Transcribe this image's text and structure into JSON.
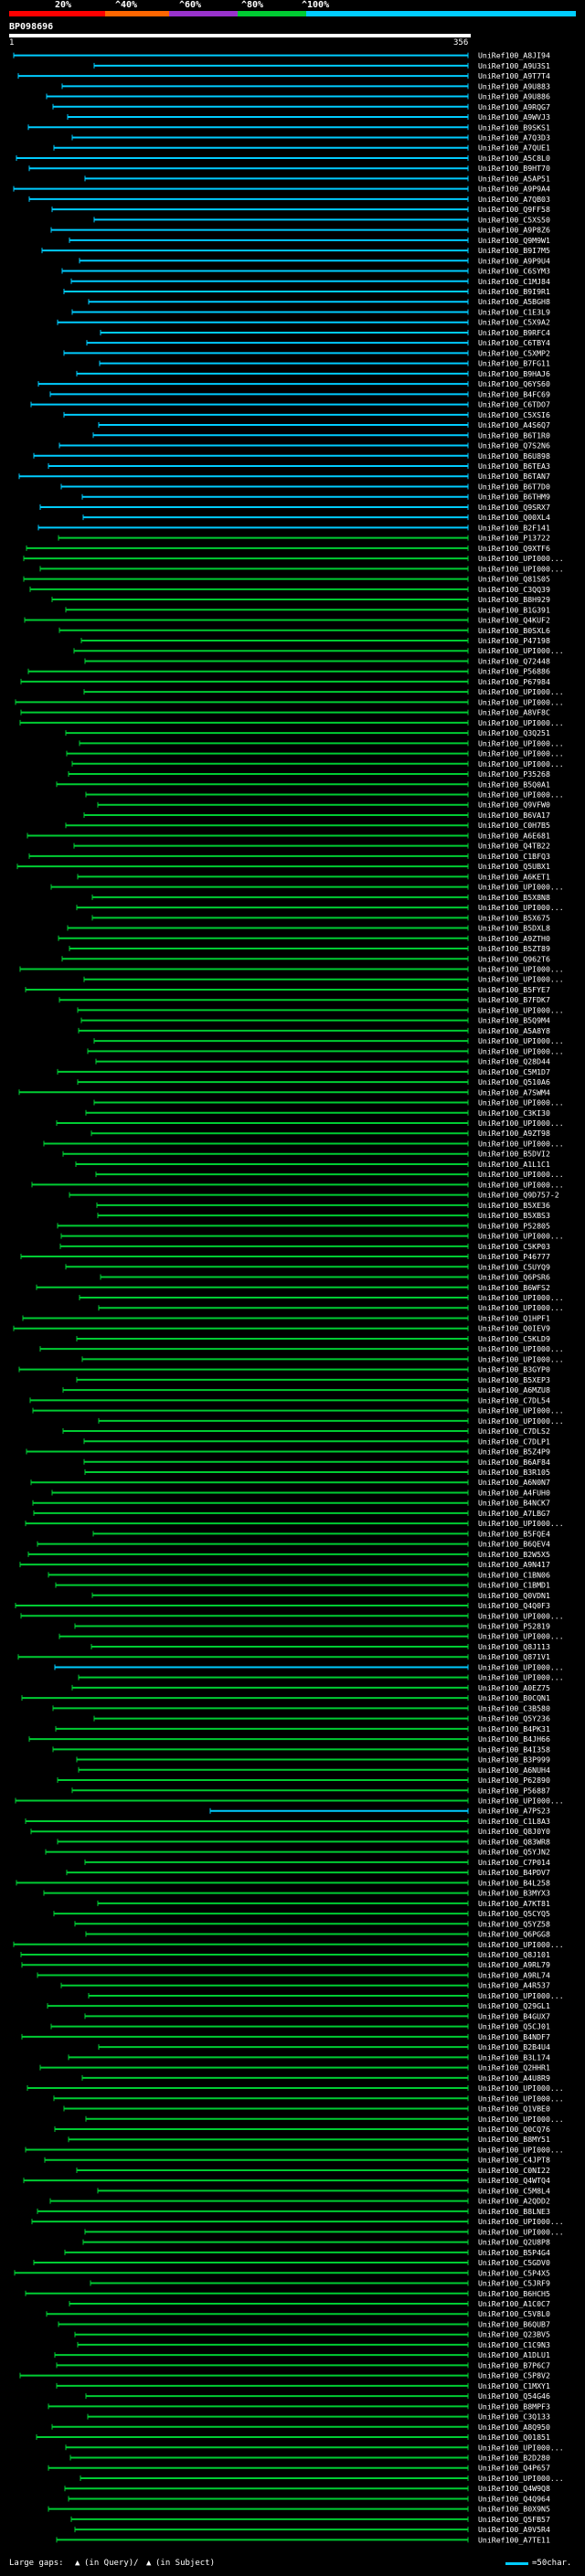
{
  "scale": {
    "labels": [
      "20%",
      "^40%",
      "^60%",
      "^80%",
      "^100%"
    ],
    "colors": [
      "#ff0000",
      "#ff6600",
      "#9933cc",
      "#00cc33",
      "#00ccff"
    ]
  },
  "query": {
    "name": "BP098696",
    "start": "1",
    "end": "356"
  },
  "hit_names": [
    "UniRef100_A8JI94",
    "UniRef100_A9U3S1",
    "UniRef100_A9T7T4",
    "UniRef100_A9U883",
    "UniRef100_A9U886",
    "UniRef100_A9RQG7",
    "UniRef100_A9WVJ3",
    "UniRef100_B9SKS1",
    "UniRef100_A7Q3D3",
    "UniRef100_A7QUE1",
    "UniRef100_A5C8L0",
    "UniRef100_B9HT70",
    "UniRef100_A5AP51",
    "UniRef100_A9P9A4",
    "UniRef100_A7QB03",
    "UniRef100_Q9FF58",
    "UniRef100_C5XS50",
    "UniRef100_A9P8Z6",
    "UniRef100_Q9M9W1",
    "UniRef100_B9I7M5",
    "UniRef100_A9P9U4",
    "UniRef100_C6SYM3",
    "UniRef100_C1MJ84",
    "UniRef100_B9I9R1",
    "UniRef100_A5BGH8",
    "UniRef100_C1E3L9",
    "UniRef100_C5X9A2",
    "UniRef100_B9RFC4",
    "UniRef100_C6TBY4",
    "UniRef100_C5XMP2",
    "UniRef100_B7FG11",
    "UniRef100_B9HAJ6",
    "UniRef100_Q6YS60",
    "UniRef100_B4FC69",
    "UniRef100_C6TDO7",
    "UniRef100_C5XSI6",
    "UniRef100_A4S6Q7",
    "UniRef100_B6T1R0",
    "UniRef100_Q7S2N6",
    "UniRef100_B6U898",
    "UniRef100_B6TEA3",
    "UniRef100_B6TAN7",
    "UniRef100_B6T7D0",
    "UniRef100_B6THM9",
    "UniRef100_Q9SRX7",
    "UniRef100_Q00XL4",
    "UniRef100_B2F141",
    "UniRef100_P13722",
    "UniRef100_Q9XTF6",
    "UniRef100_UPI000...",
    "UniRef100_UPI000...",
    "UniRef100_Q81S05",
    "UniRef100_C3QQ39",
    "UniRef100_B8H929",
    "UniRef100_B1G391",
    "UniRef100_Q4KUF2",
    "UniRef100_B0SXL6",
    "UniRef100_P47198",
    "UniRef100_UPI000...",
    "UniRef100_Q72448",
    "UniRef100_P56886",
    "UniRef100_P67984",
    "UniRef100_UPI000...",
    "UniRef100_UPI000...",
    "UniRef100_A8VF8C",
    "UniRef100_UPI000...",
    "UniRef100_Q3Q251",
    "UniRef100_UPI000...",
    "UniRef100_UPI000...",
    "UniRef100_UPI000...",
    "UniRef100_P35268",
    "UniRef100_B5Q0A1",
    "UniRef100_UPI000...",
    "UniRef100_Q9VFW0",
    "UniRef100_B6VA17",
    "UniRef100_C0H7B5",
    "UniRef100_A6E681",
    "UniRef100_Q4TB22",
    "UniRef100_C1BFQ3",
    "UniRef100_Q5UBX1",
    "UniRef100_A6KET1",
    "UniRef100_UPI000...",
    "UniRef100_B5X8N8",
    "UniRef100_UPI000...",
    "UniRef100_B5X675",
    "UniRef100_B5DXL8",
    "UniRef100_A9ZTH0",
    "UniRef100_B5ZT89",
    "UniRef100_Q962T6",
    "UniRef100_UPI000...",
    "UniRef100_UPI000...",
    "UniRef100_B5FYE7",
    "UniRef100_B7FDK7",
    "UniRef100_UPI000...",
    "UniRef100_B5Q9M4",
    "UniRef100_A5A8Y8",
    "UniRef100_UPI000...",
    "UniRef100_UPI000...",
    "UniRef100_Q28D44",
    "UniRef100_C5M1D7",
    "UniRef100_Q510A6",
    "UniRef100_A7SWM4",
    "UniRef100_UPI000...",
    "UniRef100_C3KI30",
    "UniRef100_UPI000...",
    "UniRef100_A9ZT98",
    "UniRef100_UPI000...",
    "UniRef100_B5DVI2",
    "UniRef100_A1L1C1",
    "UniRef100_UPI000...",
    "UniRef100_UPI000...",
    "UniRef100_Q9D757-2",
    "UniRef100_B5XE36",
    "UniRef100_B5XBS3",
    "UniRef100_P52805",
    "UniRef100_UPI000...",
    "UniRef100_C5KP03",
    "UniRef100_P46777",
    "UniRef100_C5UYQ9",
    "UniRef100_Q6PSR6",
    "UniRef100_B6WFS2",
    "UniRef100_UPI000...",
    "UniRef100_UPI000...",
    "UniRef100_Q1HPF1",
    "UniRef100_Q0IEV9",
    "UniRef100_C5KLD9",
    "UniRef100_UPI000...",
    "UniRef100_UPI000...",
    "UniRef100_B3GYP0",
    "UniRef100_B5XEP3",
    "UniRef100_A6MZU8",
    "UniRef100_C7DL54",
    "UniRef100_UPI000...",
    "UniRef100_UPI000...",
    "UniRef100_C7DLS2",
    "UniRef100_C7DLP1",
    "UniRef100_B5Z4P9",
    "UniRef100_B6AF84",
    "UniRef100_B3R105",
    "UniRef100_A6N0N7",
    "UniRef100_A4FUH0",
    "UniRef100_B4NCK7",
    "UniRef100_A7LBG7",
    "UniRef100_UPI000...",
    "UniRef100_B5FQE4",
    "UniRef100_B6QEV4",
    "UniRef100_B2W5X5",
    "UniRef100_A9N417",
    "UniRef100_C1BN06",
    "UniRef100_C1BMD1",
    "UniRef100_Q0VDN1",
    "UniRef100_Q4Q0F3",
    "UniRef100_UPI000...",
    "UniRef100_P52819",
    "UniRef100_UPI000...",
    "UniRef100_Q8J113",
    "UniRef100_Q871V1",
    "UniRef100_UPI000...",
    "UniRef100_UPI000...",
    "UniRef100_A0EZ75",
    "UniRef100_B0CQN1",
    "UniRef100_C3B580",
    "UniRef100_Q5Y236",
    "UniRef100_B4PK31",
    "UniRef100_B4JH66",
    "UniRef100_B4I358",
    "UniRef100_B3P999",
    "UniRef100_A6NUH4",
    "UniRef100_P62890",
    "UniRef100_P56887",
    "UniRef100_UPI000...",
    "UniRef100_A7PS23",
    "UniRef100_C1L8A3",
    "UniRef100_Q8J0Y0",
    "UniRef100_Q83WR8",
    "UniRef100_Q5YJN2",
    "UniRef100_C7P014",
    "UniRef100_B4PDV7",
    "UniRef100_B4L258",
    "UniRef100_B3MYX3",
    "UniRef100_A7KT81",
    "UniRef100_Q5CYQ5",
    "UniRef100_Q5YZ58",
    "UniRef100_Q6PGG8",
    "UniRef100_UPI000...",
    "UniRef100_Q8J101",
    "UniRef100_A9RL79",
    "UniRef100_A9RL74",
    "UniRef100_A4R537",
    "UniRef100_UPI000...",
    "UniRef100_Q29GL1",
    "UniRef100_B4GUX7",
    "UniRef100_Q5CJ01",
    "UniRef100_B4NDF7",
    "UniRef100_B2B4U4",
    "UniRef100_B3L174",
    "UniRef100_Q2HHR1",
    "UniRef100_A4U8R9",
    "UniRef100_UPI000...",
    "UniRef100_UPI000...",
    "UniRef100_Q1VBE0",
    "UniRef100_UPI000...",
    "UniRef100_Q0CQ76",
    "UniRef100_B8MY51",
    "UniRef100_UPI000...",
    "UniRef100_C4JPT8",
    "UniRef100_C0NI22",
    "UniRef100_Q4WTQ4",
    "UniRef100_C5M8L4",
    "UniRef100_A2QDD2",
    "UniRef100_B8LNE3",
    "UniRef100_UPI000...",
    "UniRef100_UPI000...",
    "UniRef100_Q2U8P8",
    "UniRef100_B5P4G4",
    "UniRef100_C5GDV0",
    "UniRef100_C5P4X5",
    "UniRef100_C5JRF9",
    "UniRef100_B6HCH5",
    "UniRef100_A1C0C7",
    "UniRef100_C5V8L0",
    "UniRef100_B6QUB7",
    "UniRef100_Q23BV5",
    "UniRef100_C1C9N3",
    "UniRef100_A1DLU1",
    "UniRef100_B7P6C7",
    "UniRef100_C5P8V2",
    "UniRef100_C1MXY1",
    "UniRef100_Q54G46",
    "UniRef100_B8MPF3",
    "UniRef100_C3Q133",
    "UniRef100_A8Q950",
    "UniRef100_Q01851",
    "UniRef100_UPI000...",
    "UniRef100_B2D280",
    "UniRef100_Q4P657",
    "UniRef100_UPI000...",
    "UniRef100_Q4W9Q8",
    "UniRef100_Q4Q964",
    "UniRef100_B0X9N5",
    "UniRef100_Q5FB57",
    "UniRef100_A9V5R4",
    "UniRef100_A7TE11"
  ],
  "footer": {
    "text1": "Large gaps: ",
    "text2": "(in Query)/",
    "text3": " (in Subject)",
    "scale_text": "=50char."
  }
}
